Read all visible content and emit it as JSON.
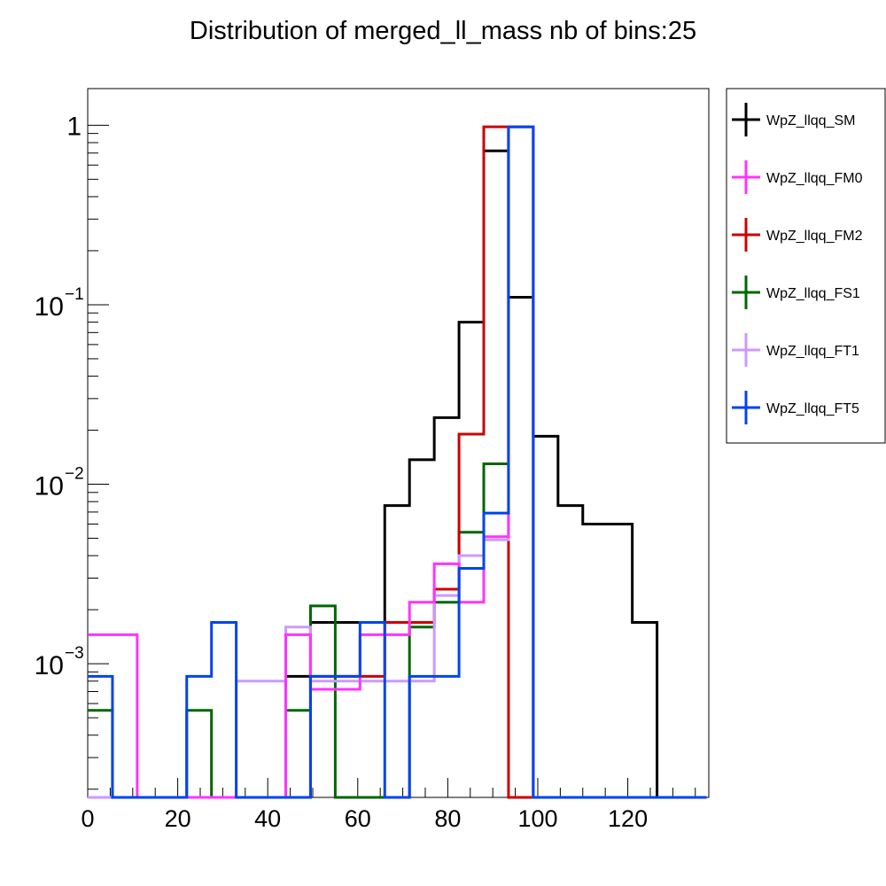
{
  "chart_data": {
    "type": "line",
    "title": "Distribution of merged_ll_mass nb of bins:25",
    "xlabel": "",
    "ylabel": "",
    "xlim": [
      0,
      138
    ],
    "ylim": [
      0.00018,
      1.6
    ],
    "y_scale": "log",
    "grid": false,
    "legend_position": "right",
    "bin_edges": [
      0,
      5.5,
      11,
      16.5,
      22,
      27.5,
      33,
      38.5,
      44,
      49.5,
      55,
      60.5,
      66,
      71.5,
      77,
      82.5,
      88,
      93.5,
      99,
      104.5,
      110,
      115.5,
      121,
      126.5,
      132,
      137.5
    ],
    "x_ticks": [
      {
        "value": 0,
        "label": "0"
      },
      {
        "value": 20,
        "label": "20"
      },
      {
        "value": 40,
        "label": "40"
      },
      {
        "value": 60,
        "label": "60"
      },
      {
        "value": 80,
        "label": "80"
      },
      {
        "value": 100,
        "label": "100"
      },
      {
        "value": 120,
        "label": "120"
      }
    ],
    "y_ticks": [
      {
        "value": 0.001,
        "base": "10",
        "exp": "−3"
      },
      {
        "value": 0.01,
        "base": "10",
        "exp": "−2"
      },
      {
        "value": 0.1,
        "base": "10",
        "exp": "−1"
      },
      {
        "value": 1,
        "base": "1",
        "exp": ""
      }
    ],
    "series": [
      {
        "name": "WpZ_llqq_SM",
        "color": "#000000",
        "values": [
          0,
          0,
          0,
          0,
          0,
          0,
          0,
          0,
          0.00085,
          0.0017,
          0.0017,
          0.0017,
          0.0076,
          0.0137,
          0.0235,
          0.08,
          0.72,
          0.11,
          0.0185,
          0.0076,
          0.006,
          0.006,
          0.0017,
          0,
          0
        ]
      },
      {
        "name": "WpZ_llqq_FM0",
        "color": "#ff33ff",
        "values": [
          0.00145,
          0.00145,
          0,
          0,
          0,
          0,
          0,
          0,
          0.00145,
          0.00072,
          0.00072,
          0.00145,
          0.00145,
          0.0022,
          0.0036,
          0.0022,
          0.0051,
          0.98,
          0,
          0,
          0,
          0,
          0,
          0,
          0
        ]
      },
      {
        "name": "WpZ_llqq_FM2",
        "color": "#cc0000",
        "values": [
          0,
          0,
          0,
          0,
          0,
          0,
          0,
          0,
          0,
          0.00085,
          0.00085,
          0.00085,
          0.0017,
          0.0017,
          0.0026,
          0.019,
          0.98,
          0,
          0,
          0,
          0,
          0,
          0,
          0,
          0
        ]
      },
      {
        "name": "WpZ_llqq_FS1",
        "color": "#006600",
        "values": [
          0.00055,
          0,
          0,
          0,
          0.00055,
          0,
          0,
          0,
          0.00055,
          0.0021,
          0,
          0,
          0,
          0.0016,
          0.0022,
          0.0054,
          0.013,
          0.98,
          0,
          0,
          0,
          0,
          0,
          0,
          0
        ]
      },
      {
        "name": "WpZ_llqq_FT1",
        "color": "#cc99ff",
        "values": [
          0,
          0,
          0,
          0,
          0,
          0,
          0.0008,
          0.0008,
          0.0016,
          0.0008,
          0.0008,
          0.0008,
          0.0008,
          0.0008,
          0.0024,
          0.004,
          0.0049,
          0.98,
          0,
          0,
          0,
          0,
          0,
          0,
          0
        ]
      },
      {
        "name": "WpZ_llqq_FT5",
        "color": "#0044ee",
        "values": [
          0.00085,
          0,
          0,
          0,
          0.00085,
          0.0017,
          0,
          0,
          0,
          0.00085,
          0.00085,
          0.0017,
          0,
          0.00085,
          0.00085,
          0.0034,
          0.0069,
          0.98,
          0,
          0,
          0,
          0,
          0,
          0,
          0
        ]
      }
    ]
  }
}
